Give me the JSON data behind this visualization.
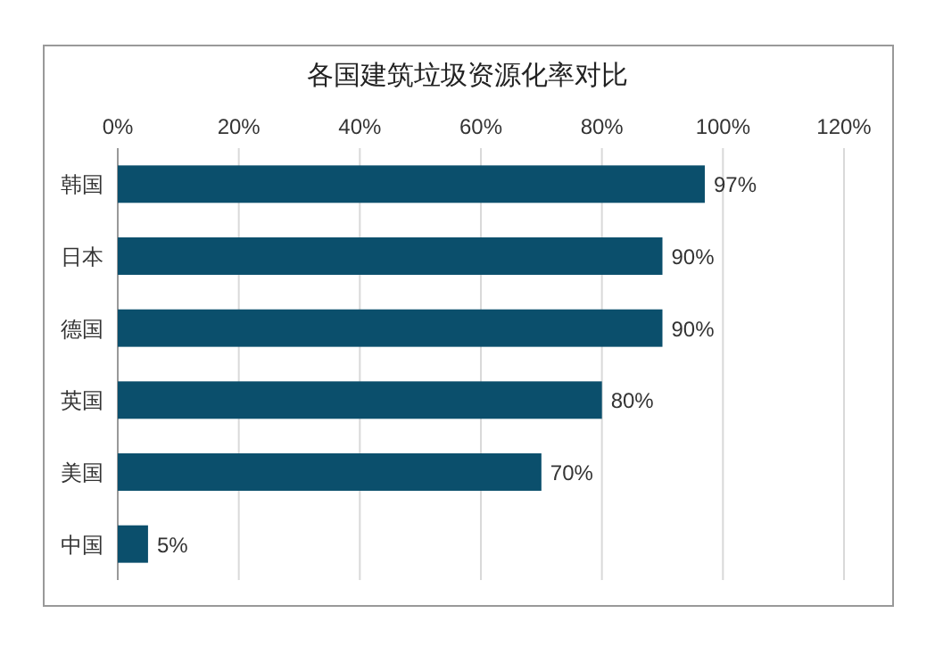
{
  "chart_data": {
    "type": "bar",
    "title": "各国建筑垃圾资源化率对比",
    "orientation": "horizontal",
    "categories": [
      "韩国",
      "日本",
      "德国",
      "英国",
      "美国",
      "中国"
    ],
    "values": [
      97,
      90,
      90,
      80,
      70,
      5
    ],
    "value_labels": [
      "97%",
      "90%",
      "90%",
      "80%",
      "70%",
      "5%"
    ],
    "color": "#0b4f6c",
    "xlim": [
      0,
      120
    ],
    "xticks": [
      {
        "value": 0,
        "label": "0%"
      },
      {
        "value": 20,
        "label": "20%"
      },
      {
        "value": 40,
        "label": "40%"
      },
      {
        "value": 60,
        "label": "60%"
      },
      {
        "value": 80,
        "label": "80%"
      },
      {
        "value": 100,
        "label": "100%"
      },
      {
        "value": 120,
        "label": "120%"
      }
    ],
    "grid": "x"
  }
}
